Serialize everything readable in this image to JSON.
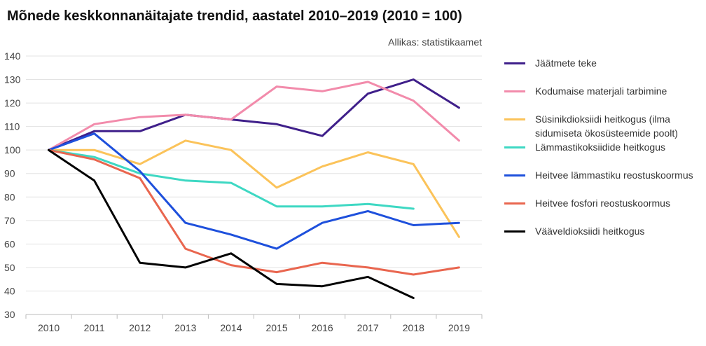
{
  "title": "Mõnede keskkonnanäitajate trendid, aastatel 2010–2019 (2010 = 100)",
  "source": "Allikas: statistikaamet",
  "chart_data": {
    "type": "line",
    "x": [
      "2010",
      "2011",
      "2012",
      "2013",
      "2014",
      "2015",
      "2016",
      "2017",
      "2018",
      "2019"
    ],
    "ylim": [
      30,
      140
    ],
    "yticks": [
      30,
      40,
      50,
      60,
      70,
      80,
      90,
      100,
      110,
      120,
      130,
      140
    ],
    "grid": true,
    "legend_position": "right",
    "series": [
      {
        "name": "Jäätmete teke",
        "color": "#3f1f8a",
        "values": [
          100,
          108,
          108,
          115,
          113,
          111,
          106,
          124,
          130,
          118
        ]
      },
      {
        "name": "Kodumaise materjali tarbimine",
        "color": "#f28bab",
        "values": [
          100,
          111,
          114,
          115,
          113,
          127,
          125,
          129,
          121,
          104
        ]
      },
      {
        "name": "Süsinikdioksiidi heitkogus (ilma sidumiseta ökosüsteemide poolt)",
        "color": "#fbc35a",
        "values": [
          100,
          100,
          94,
          104,
          100,
          84,
          93,
          99,
          94,
          63
        ]
      },
      {
        "name": "Lämmastikoksiidide heitkogus",
        "color": "#3ed8c3",
        "values": [
          100,
          97,
          90,
          87,
          86,
          76,
          76,
          77,
          75,
          null
        ]
      },
      {
        "name": "Heitvee lämmastiku reostuskoormus",
        "color": "#1e50dc",
        "values": [
          100,
          107,
          91,
          69,
          64,
          58,
          69,
          74,
          68,
          69
        ]
      },
      {
        "name": "Heitvee fosfori reostuskoormus",
        "color": "#e9664f",
        "values": [
          100,
          96,
          88,
          58,
          51,
          48,
          52,
          50,
          47,
          50
        ]
      },
      {
        "name": "Vääveldioksiidi heitkogus",
        "color": "#000000",
        "values": [
          100,
          87,
          52,
          50,
          56,
          43,
          42,
          46,
          37,
          null
        ]
      }
    ]
  }
}
